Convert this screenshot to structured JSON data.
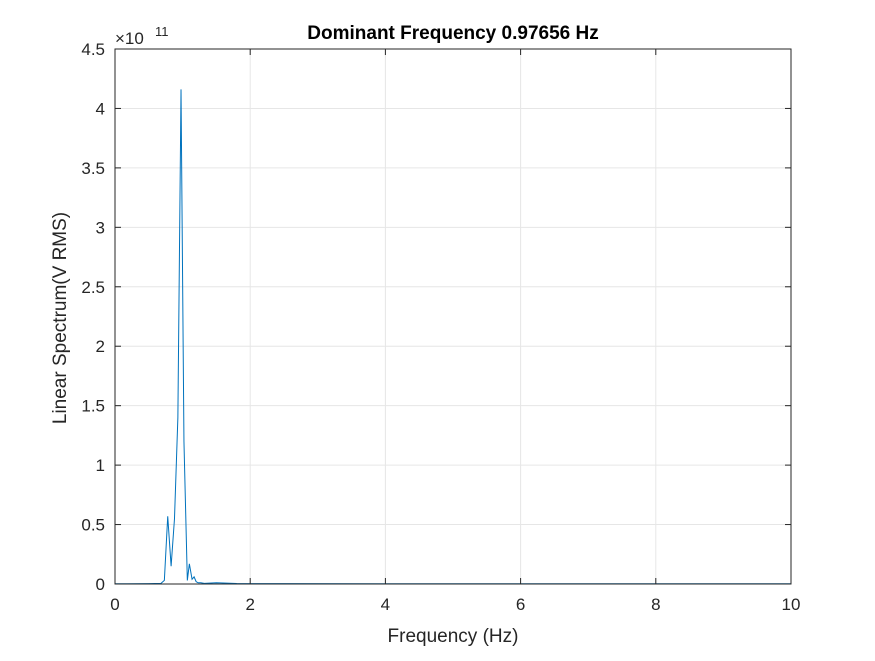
{
  "chart_data": {
    "type": "line",
    "title": "Dominant Frequency 0.97656 Hz",
    "xlabel": "Frequency (Hz)",
    "ylabel": "Linear Spectrum(V RMS)",
    "y_exponent_label": "×10",
    "y_exponent_power": "11",
    "y_multiplier": 100000000000,
    "xlim": [
      0,
      10
    ],
    "ylim": [
      0,
      4.5
    ],
    "grid": true,
    "x_ticks": [
      0,
      2,
      4,
      6,
      8,
      10
    ],
    "x_tick_labels": [
      "0",
      "2",
      "4",
      "6",
      "8",
      "10"
    ],
    "y_ticks": [
      0,
      0.5,
      1,
      1.5,
      2,
      2.5,
      3,
      3.5,
      4,
      4.5
    ],
    "y_tick_labels": [
      "0",
      "0.5",
      "1",
      "1.5",
      "2",
      "2.5",
      "3",
      "3.5",
      "4",
      "4.5"
    ],
    "colors": {
      "line": "#0072BD",
      "grid": "#e6e6e6",
      "axes": "#262626"
    },
    "series": [
      {
        "x": [
          0,
          0.5,
          0.68,
          0.73,
          0.78,
          0.83,
          0.88,
          0.93,
          0.97656,
          1.02,
          1.07,
          1.1,
          1.14,
          1.17,
          1.2,
          1.23,
          1.27,
          1.32,
          1.5,
          1.8,
          2.5,
          4,
          6,
          8,
          10
        ],
        "y": [
          0.002,
          0.003,
          0.005,
          0.03,
          0.57,
          0.15,
          0.55,
          1.4,
          4.16,
          1.2,
          0.03,
          0.17,
          0.04,
          0.06,
          0.02,
          0.01,
          0.01,
          0.005,
          0.01,
          0.004,
          0.003,
          0.002,
          0.002,
          0.002,
          0.002
        ]
      }
    ]
  }
}
